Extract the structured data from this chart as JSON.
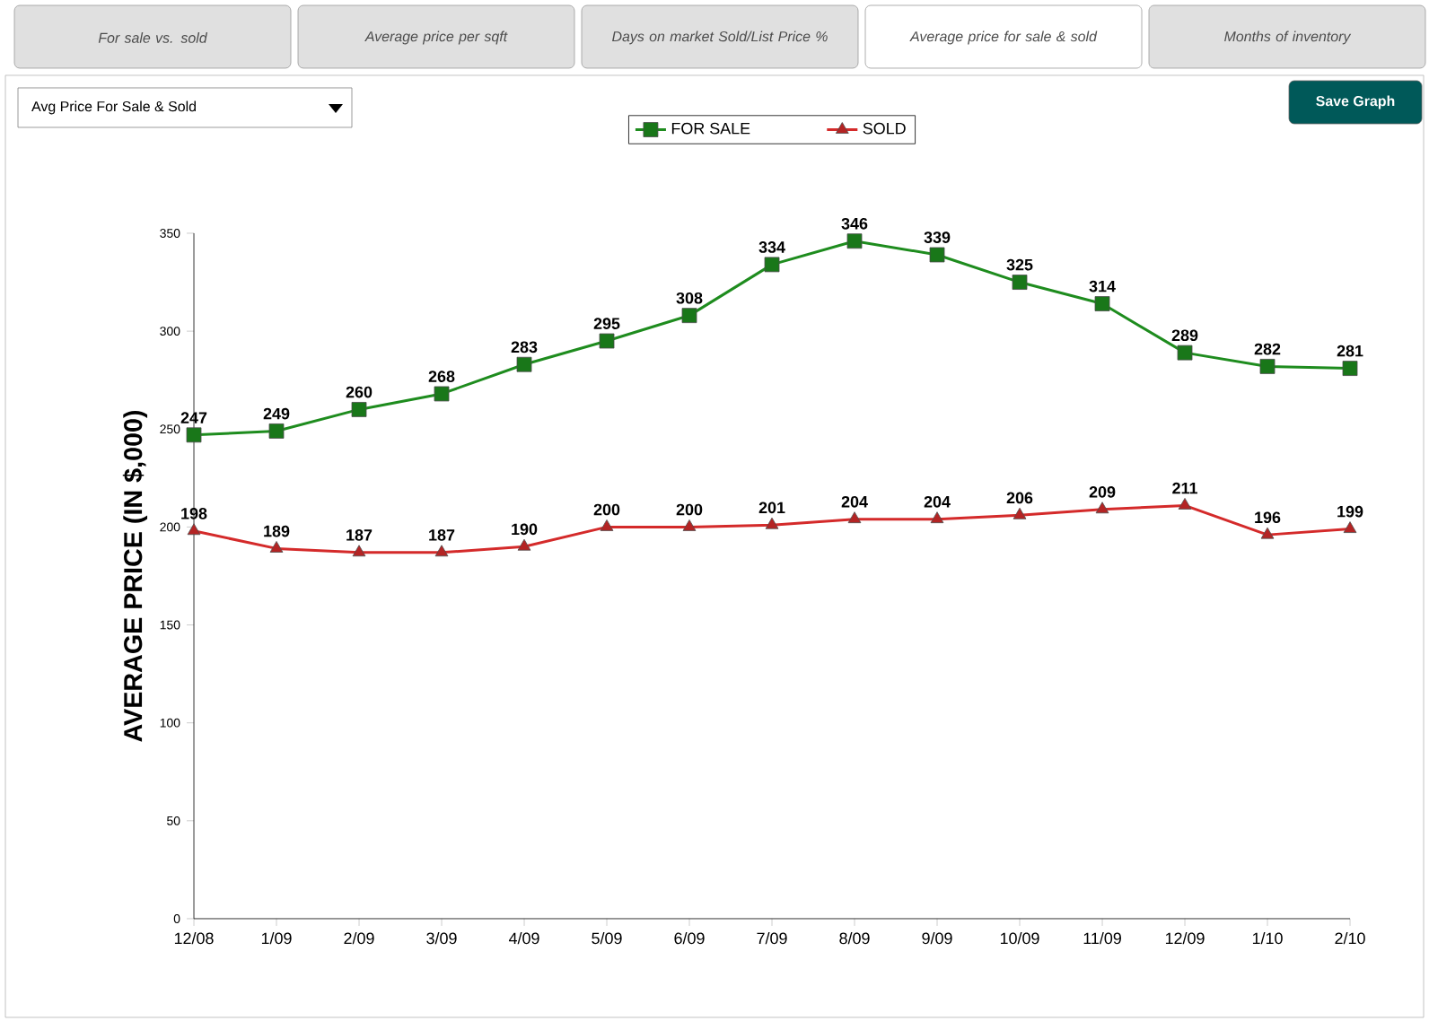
{
  "chart_data": {
    "type": "line",
    "ylabel": "AVERAGE PRICE (IN $,000)",
    "categories": [
      "12/08",
      "1/09",
      "2/09",
      "3/09",
      "4/09",
      "5/09",
      "6/09",
      "7/09",
      "8/09",
      "9/09",
      "10/09",
      "11/09",
      "12/09",
      "1/10",
      "2/10"
    ],
    "series": [
      {
        "name": "FOR SALE",
        "color": "#1e8c1e",
        "marker": "square",
        "values": [
          247,
          249,
          260,
          268,
          283,
          295,
          308,
          334,
          346,
          339,
          325,
          314,
          289,
          282,
          281
        ]
      },
      {
        "name": "SOLD",
        "color": "#d42a2a",
        "marker": "triangle",
        "values": [
          198,
          189,
          187,
          187,
          190,
          200,
          200,
          201,
          204,
          204,
          206,
          209,
          211,
          196,
          199
        ]
      }
    ],
    "ylim": [
      0,
      350
    ],
    "yticks": [
      0,
      50,
      100,
      150,
      200,
      250,
      300,
      350
    ],
    "grid": false,
    "legend": "top",
    "data_labels": true,
    "line_style": "solid",
    "annotations": [
      "For sale vs. sold",
      "Average price per sqft",
      "Days on market Sold/List Price %",
      "Average price for sale & sold",
      "Months of inventory",
      "Avg Price For Sale & Sold",
      "Save Graph"
    ]
  }
}
